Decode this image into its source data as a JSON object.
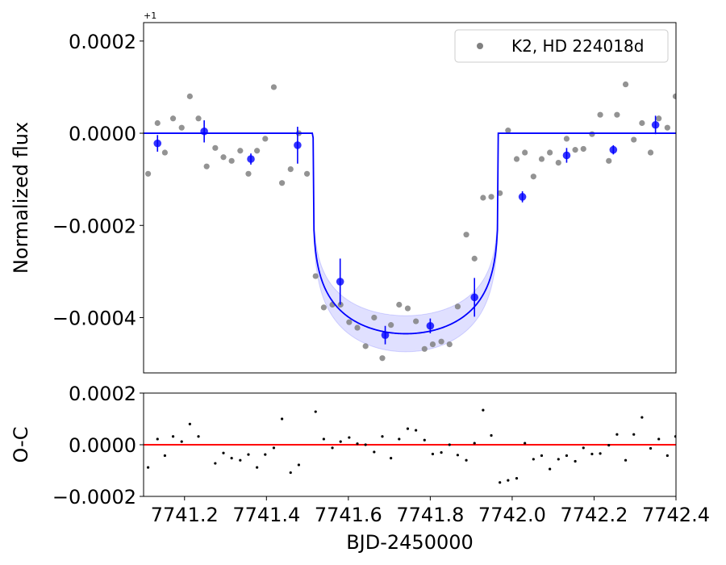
{
  "chart_data": {
    "type": "scatter",
    "xlabel": "BJD-2450000",
    "top_panel": {
      "ylabel": "Normalized flux",
      "offset_text": "+1",
      "xlim": [
        7741.1,
        7742.4
      ],
      "ylim": [
        -0.00052,
        0.00024
      ],
      "yticks": [
        0.0002,
        0.0,
        -0.0002,
        -0.0004
      ],
      "ytick_labels": [
        "0.0002",
        "0.0000",
        "−0.0002",
        "−0.0004"
      ],
      "legend": {
        "placement": "top-right",
        "label": "K2, HD 224018d"
      },
      "raw_points": {
        "name": "K2, HD 224018d",
        "color": "#808080",
        "x": [
          7741.111,
          7741.134,
          7741.152,
          7741.172,
          7741.193,
          7741.213,
          7741.234,
          7741.254,
          7741.275,
          7741.295,
          7741.315,
          7741.336,
          7741.356,
          7741.377,
          7741.397,
          7741.418,
          7741.438,
          7741.459,
          7741.479,
          7741.499,
          7741.52,
          7741.54,
          7741.561,
          7741.581,
          7741.602,
          7741.622,
          7741.642,
          7741.663,
          7741.683,
          7741.704,
          7741.724,
          7741.745,
          7741.765,
          7741.786,
          7741.806,
          7741.827,
          7741.847,
          7741.867,
          7741.888,
          7741.908,
          7741.929,
          7741.949,
          7741.97,
          7741.99,
          7742.011,
          7742.031,
          7742.052,
          7742.072,
          7742.092,
          7742.113,
          7742.133,
          7742.154,
          7742.174,
          7742.195,
          7742.215,
          7742.236,
          7742.256,
          7742.277,
          7742.297,
          7742.317,
          7742.338,
          7742.358,
          7742.379,
          7742.399
        ],
        "y": [
          -8.8e-05,
          2.2e-05,
          -4.2e-05,
          3.2e-05,
          1.2e-05,
          8e-05,
          3.2e-05,
          -7.2e-05,
          -3.2e-05,
          -5.2e-05,
          -6e-05,
          -3.8e-05,
          -8.8e-05,
          -3.8e-05,
          -1.2e-05,
          0.0001,
          -0.000108,
          -7.8e-05,
          0.0,
          -8.8e-05,
          -0.00031,
          -0.000378,
          -0.000372,
          -0.000372,
          -0.00041,
          -0.000422,
          -0.000462,
          -0.0004,
          -0.000488,
          -0.000416,
          -0.000372,
          -0.00038,
          -0.000408,
          -0.000468,
          -0.000458,
          -0.000452,
          -0.000458,
          -0.000376,
          -0.00022,
          -0.000272,
          -0.00014,
          -0.000138,
          -0.00013,
          6e-06,
          -5.6e-05,
          -4.2e-05,
          -9.4e-05,
          -5.6e-05,
          -4.2e-05,
          -6.4e-05,
          -1.2e-05,
          -3.6e-05,
          -3.4e-05,
          -2e-06,
          4e-05,
          -6e-05,
          4e-05,
          0.000106,
          -1.4e-05,
          2.2e-05,
          -4.2e-05,
          3.2e-05,
          1.2e-05,
          8e-05
        ]
      },
      "binned_points": {
        "color": "#0000ff",
        "x": [
          7741.134,
          7741.248,
          7741.362,
          7741.476,
          7741.58,
          7741.69,
          7741.8,
          7741.908,
          7742.025,
          7742.133,
          7742.247,
          7742.35
        ],
        "y": [
          -2.2e-05,
          4e-06,
          -5.6e-05,
          -2.6e-05,
          -0.000322,
          -0.000438,
          -0.000418,
          -0.000356,
          -0.000138,
          -4.8e-05,
          -3.6e-05,
          1.8e-05
        ],
        "err": [
          1.8e-05,
          2.4e-05,
          1.2e-05,
          4e-05,
          5e-05,
          2e-05,
          1.6e-05,
          4.2e-05,
          1.2e-05,
          1.6e-05,
          1e-05,
          2e-05
        ]
      },
      "model": {
        "color": "#0000ff",
        "t_start": 7741.514,
        "t_end": 7741.966,
        "depth": -0.000435
      }
    },
    "bottom_panel": {
      "ylabel": "O-C",
      "ylim": [
        -0.0002,
        0.0002
      ],
      "yticks": [
        0.0002,
        0.0,
        -0.0002
      ],
      "ytick_labels": [
        "0.0002",
        "0.0000",
        "−0.0002"
      ],
      "xticks": [
        7741.2,
        7741.4,
        7741.6,
        7741.8,
        7742.0,
        7742.2,
        7742.4
      ],
      "xtick_labels": [
        "7741.2",
        "7741.4",
        "7741.6",
        "7741.8",
        "7742.0",
        "7742.2",
        "7742.4"
      ],
      "zero_line_color": "#ff0000",
      "residuals": {
        "color": "#000000",
        "x": [
          7741.111,
          7741.134,
          7741.152,
          7741.172,
          7741.193,
          7741.213,
          7741.234,
          7741.275,
          7741.295,
          7741.315,
          7741.336,
          7741.356,
          7741.377,
          7741.397,
          7741.418,
          7741.438,
          7741.459,
          7741.479,
          7741.52,
          7741.54,
          7741.561,
          7741.581,
          7741.602,
          7741.622,
          7741.642,
          7741.663,
          7741.683,
          7741.704,
          7741.724,
          7741.745,
          7741.765,
          7741.786,
          7741.806,
          7741.827,
          7741.847,
          7741.867,
          7741.888,
          7741.908,
          7741.929,
          7741.949,
          7741.97,
          7741.99,
          7742.011,
          7742.031,
          7742.052,
          7742.072,
          7742.092,
          7742.113,
          7742.133,
          7742.154,
          7742.174,
          7742.195,
          7742.215,
          7742.236,
          7742.256,
          7742.277,
          7742.297,
          7742.317,
          7742.338,
          7742.358,
          7742.379,
          7742.399
        ],
        "y": [
          -8.8e-05,
          2.2e-05,
          -4.2e-05,
          3.2e-05,
          1.2e-05,
          8e-05,
          3.2e-05,
          -7.2e-05,
          -3.2e-05,
          -5.2e-05,
          -6e-05,
          -3.8e-05,
          -8.8e-05,
          -3.8e-05,
          -1.2e-05,
          0.0001,
          -0.000108,
          -7.8e-05,
          0.000128,
          2.2e-05,
          -1.2e-05,
          1.2e-05,
          2.8e-05,
          4e-06,
          0.0,
          -2.8e-05,
          3.2e-05,
          -5.2e-05,
          2.2e-05,
          6.2e-05,
          5.6e-05,
          1.8e-05,
          -3.6e-05,
          -3e-05,
          0.0,
          -4e-05,
          -6e-05,
          6e-06,
          0.000134,
          3.6e-05,
          -0.000146,
          -0.000138,
          -0.00013,
          6e-06,
          -5.6e-05,
          -4.2e-05,
          -9.4e-05,
          -5.6e-05,
          -4.2e-05,
          -6.4e-05,
          -1.2e-05,
          -3.6e-05,
          -3.4e-05,
          -2e-06,
          4e-05,
          -6e-05,
          4e-05,
          0.000106,
          -1.4e-05,
          2.2e-05,
          -4.2e-05,
          3.2e-05
        ]
      }
    }
  }
}
